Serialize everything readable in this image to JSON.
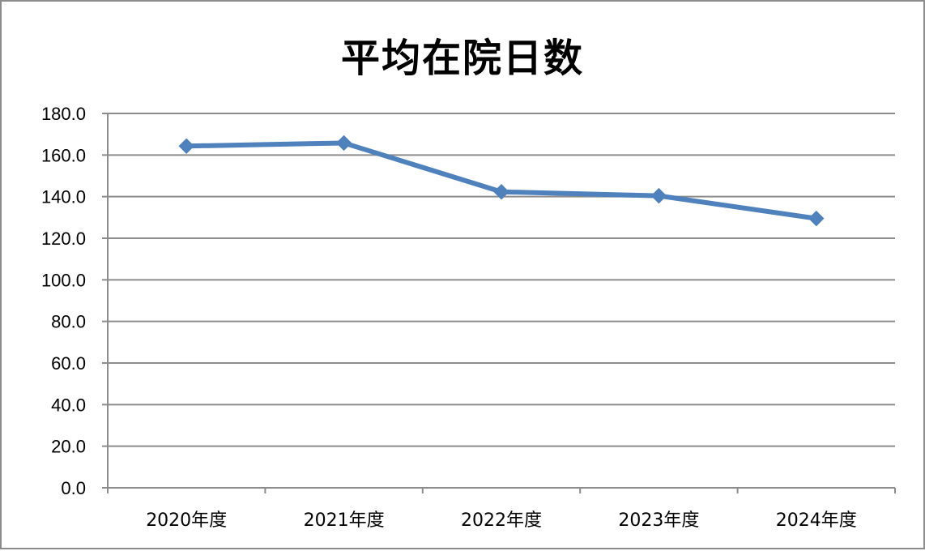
{
  "chart_data": {
    "type": "line",
    "title": "平均在院日数",
    "xlabel": "",
    "ylabel": "",
    "categories": [
      "2020年度",
      "2021年度",
      "2022年度",
      "2023年度",
      "2024年度"
    ],
    "series": [
      {
        "values": [
          164.3,
          165.8,
          142.3,
          140.4,
          129.5
        ],
        "color": "#4f81bd",
        "marker": "diamond"
      }
    ],
    "ylim": [
      0,
      180
    ],
    "yticks": [
      "0.0",
      "20.0",
      "40.0",
      "60.0",
      "80.0",
      "100.0",
      "120.0",
      "140.0",
      "160.0",
      "180.0"
    ],
    "grid": true,
    "legend": "none"
  }
}
